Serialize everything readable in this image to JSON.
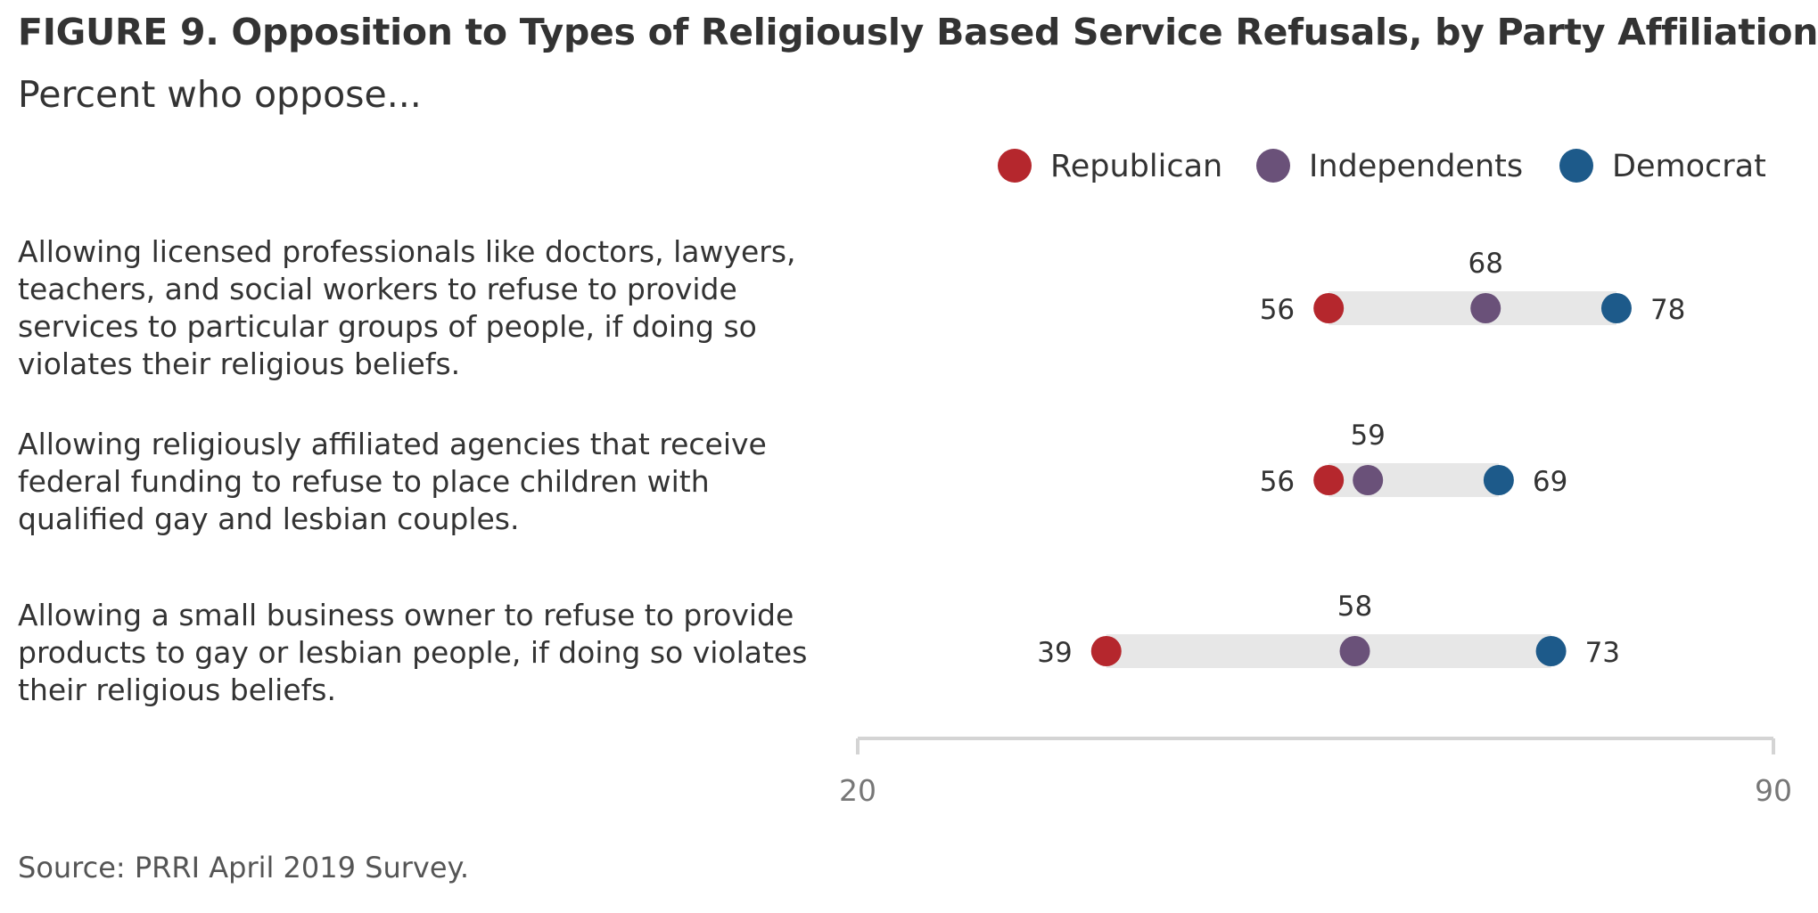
{
  "header": {
    "title": "FIGURE 9. Opposition to Types of Religiously Based Service Refusals, by Party Affiliation",
    "subtitle": "Percent who oppose..."
  },
  "footer": {
    "source": "Source: PRRI April 2019 Survey."
  },
  "colors": {
    "Republican": "#b5272d",
    "Independents": "#6a5179",
    "Democrat": "#1d5a8a",
    "bar": "#e7e7e7",
    "axis": "#d4d4d4"
  },
  "chart_data": {
    "type": "scatter",
    "subtype": "dot-range",
    "title": "FIGURE 9. Opposition to Types of Religiously Based Service Refusals, by Party Affiliation",
    "subtitle": "Percent who oppose...",
    "xlim": [
      20,
      90
    ],
    "x_ticks": [
      20,
      90
    ],
    "grid": false,
    "legend_position": "top-right",
    "series_names": [
      "Republican",
      "Independents",
      "Democrat"
    ],
    "categories": [
      {
        "lines": [
          "Allowing licensed professionals like doctors, lawyers,",
          "teachers, and social workers to refuse to provide",
          "services to particular groups of people, if doing so",
          "violates their religious beliefs."
        ],
        "values": {
          "Republican": 56,
          "Independents": 68,
          "Democrat": 78
        }
      },
      {
        "lines": [
          "Allowing religiously affiliated agencies that receive",
          "federal funding to refuse to place children with",
          "qualified gay and lesbian couples."
        ],
        "values": {
          "Republican": 56,
          "Independents": 59,
          "Democrat": 69
        }
      },
      {
        "lines": [
          "Allowing a small business owner to refuse to provide",
          "products to gay or lesbian people, if doing so violates",
          "their religious beliefs."
        ],
        "values": {
          "Republican": 39,
          "Independents": 58,
          "Democrat": 73
        }
      }
    ]
  }
}
